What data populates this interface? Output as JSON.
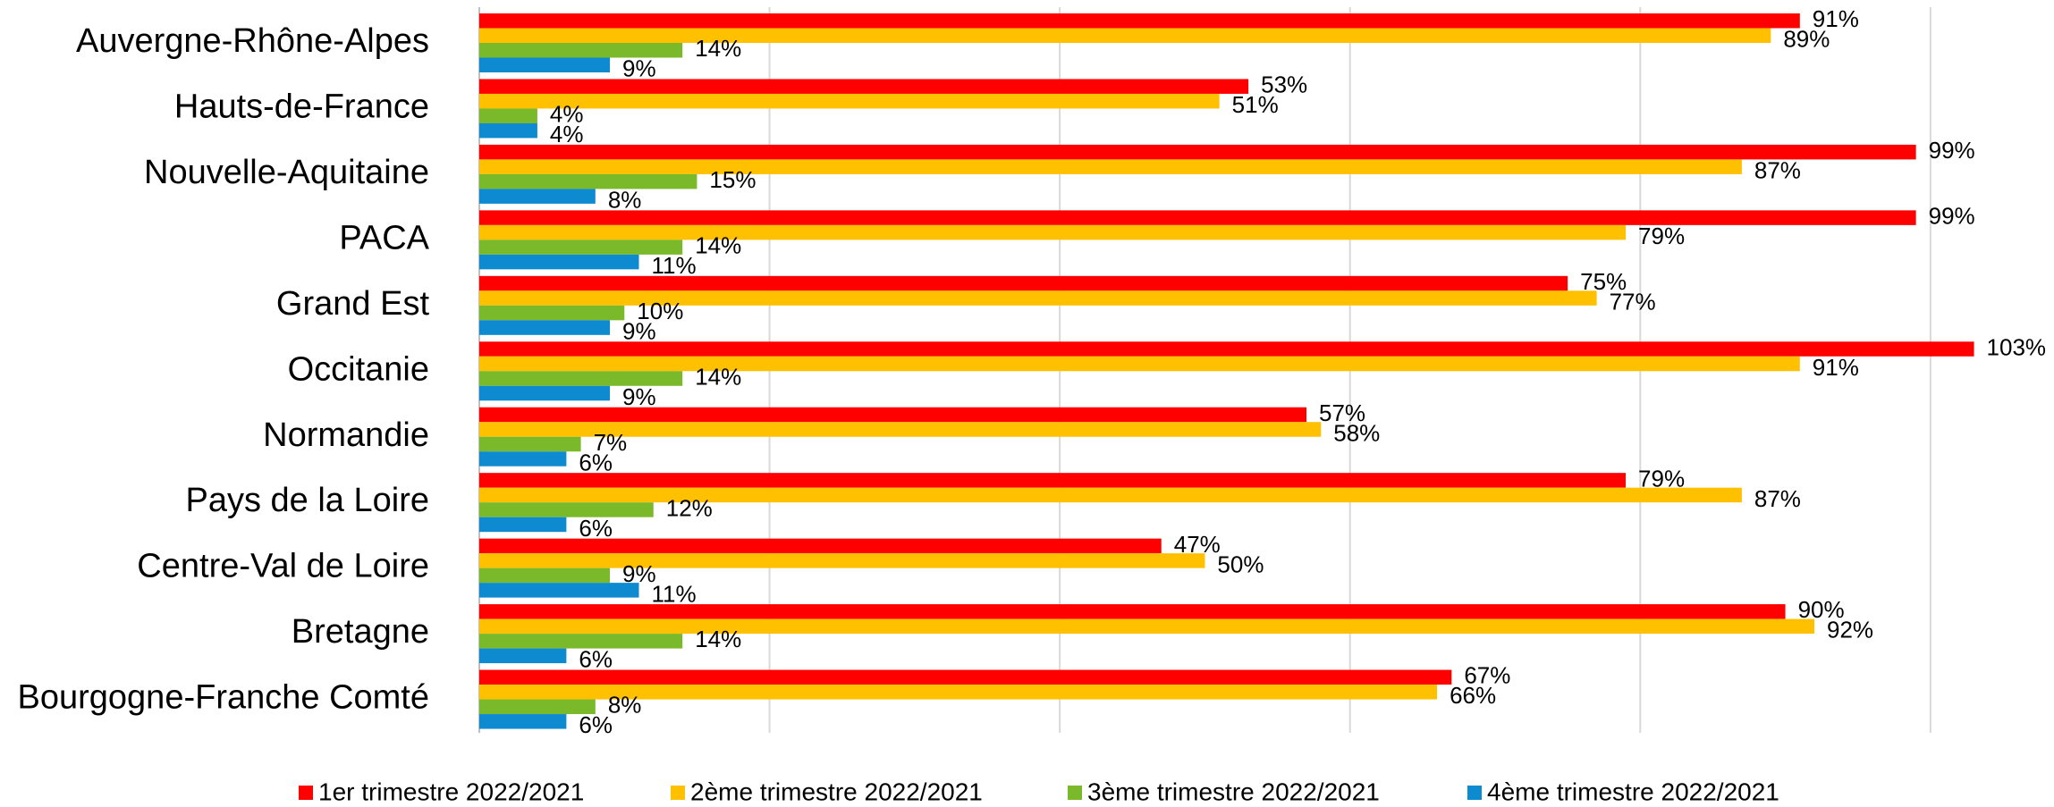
{
  "chart_data": {
    "type": "hbar",
    "categories": [
      "Auvergne-Rhône-Alpes",
      "Hauts-de-France",
      "Nouvelle-Aquitaine",
      "PACA",
      "Grand Est",
      "Occitanie",
      "Normandie",
      "Pays de la Loire",
      "Centre-Val de Loire",
      "Bretagne",
      "Bourgogne-Franche Comté"
    ],
    "series": [
      {
        "name": "1er trimestre 2022/2021",
        "color": "#ff0000",
        "values": [
          91,
          53,
          99,
          99,
          75,
          103,
          57,
          79,
          47,
          90,
          67
        ],
        "value_labels": [
          "91%",
          "53%",
          "99%",
          "99%",
          "75%",
          "103%",
          "57%",
          "79%",
          "47%",
          "90%",
          "67%"
        ]
      },
      {
        "name": "2ème trimestre 2022/2021",
        "color": "#ffc000",
        "values": [
          89,
          51,
          87,
          79,
          77,
          91,
          58,
          87,
          50,
          92,
          66
        ],
        "value_labels": [
          "89%",
          "51%",
          "87%",
          "79%",
          "77%",
          "91%",
          "58%",
          "87%",
          "50%",
          "92%",
          "66%"
        ]
      },
      {
        "name": "3ème trimestre 2022/2021",
        "color": "#7ab929",
        "values": [
          14,
          4,
          15,
          14,
          10,
          14,
          7,
          12,
          9,
          14,
          8
        ],
        "value_labels": [
          "14%",
          "4%",
          "15%",
          "14%",
          "10%",
          "14%",
          "7%",
          "12%",
          "9%",
          "14%",
          "8%"
        ]
      },
      {
        "name": "4ème trimestre 2022/2021",
        "color": "#0e8ad1",
        "values": [
          9,
          4,
          8,
          11,
          9,
          9,
          6,
          6,
          11,
          6,
          6
        ],
        "value_labels": [
          "9%",
          "4%",
          "8%",
          "11%",
          "9%",
          "9%",
          "6%",
          "6%",
          "11%",
          "6%",
          "6%"
        ]
      }
    ],
    "xlim": [
      0,
      105
    ],
    "xticks": [
      0,
      20,
      40,
      60,
      80,
      100
    ],
    "grid": true,
    "legend": "bottom"
  }
}
